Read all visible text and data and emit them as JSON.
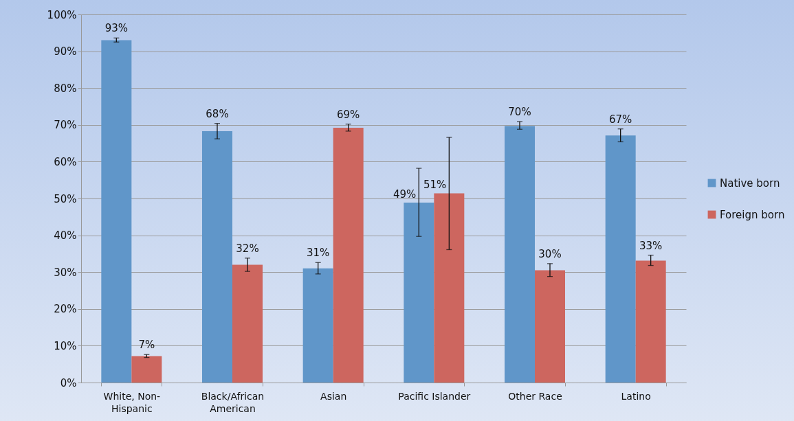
{
  "chart_data": {
    "type": "bar",
    "categories": [
      "White, Non-Hispanic",
      "Black/African American",
      "Asian",
      "Pacific Islander",
      "Other Race",
      "Latino"
    ],
    "series": [
      {
        "name": "Native born",
        "color": "#6096c9",
        "values": [
          93.0,
          68.3,
          31.0,
          48.9,
          69.7,
          67.1
        ],
        "value_labels": [
          "93%",
          "68%",
          "31%",
          "49%",
          "70%",
          "67%"
        ],
        "errors": [
          [
            92.5,
            93.6
          ],
          [
            66.2,
            70.4
          ],
          [
            29.5,
            32.6
          ],
          [
            39.7,
            58.2
          ],
          [
            68.8,
            70.9
          ],
          [
            65.4,
            68.9
          ]
        ]
      },
      {
        "name": "Foreign born",
        "color": "#cd665f",
        "values": [
          7.2,
          32.0,
          69.2,
          51.4,
          30.5,
          33.1
        ],
        "value_labels": [
          "7%",
          "32%",
          "69%",
          "51%",
          "30%",
          "33%"
        ],
        "errors": [
          [
            6.8,
            7.6
          ],
          [
            30.2,
            33.8
          ],
          [
            68.3,
            70.2
          ],
          [
            36.1,
            66.6
          ],
          [
            28.8,
            32.3
          ],
          [
            31.8,
            34.6
          ]
        ]
      }
    ],
    "ylim": [
      0,
      100
    ],
    "yticks": [
      {
        "value": 0,
        "label": "0%"
      },
      {
        "value": 10,
        "label": "10%"
      },
      {
        "value": 20,
        "label": "20%"
      },
      {
        "value": 30,
        "label": "30%"
      },
      {
        "value": 40,
        "label": "40%"
      },
      {
        "value": 50,
        "label": "50%"
      },
      {
        "value": 60,
        "label": "60%"
      },
      {
        "value": 70,
        "label": "70%"
      },
      {
        "value": 80,
        "label": "80%"
      },
      {
        "value": 90,
        "label": "90%"
      },
      {
        "value": 100,
        "label": "100%"
      }
    ],
    "grid": "y",
    "legend": "right"
  }
}
